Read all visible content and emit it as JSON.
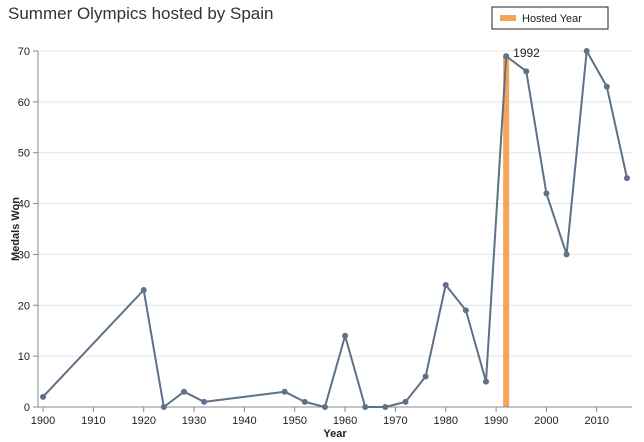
{
  "chart_data": {
    "type": "line",
    "title": "Summer Olympics hosted by Spain",
    "xlabel": "Year",
    "ylabel": "Medals Won",
    "xlim": [
      1899,
      2017
    ],
    "ylim": [
      0,
      70
    ],
    "xticks": [
      1900,
      1910,
      1920,
      1930,
      1940,
      1950,
      1960,
      1970,
      1980,
      1990,
      2000,
      2010
    ],
    "yticks": [
      0,
      10,
      20,
      30,
      40,
      50,
      60,
      70
    ],
    "grid": "horizontal",
    "series": [
      {
        "color": "#5f7186",
        "points": [
          {
            "x": 1900,
            "y": 2
          },
          {
            "x": 1920,
            "y": 23
          },
          {
            "x": 1924,
            "y": 0
          },
          {
            "x": 1928,
            "y": 3
          },
          {
            "x": 1932,
            "y": 1
          },
          {
            "x": 1948,
            "y": 3
          },
          {
            "x": 1952,
            "y": 1
          },
          {
            "x": 1956,
            "y": 0
          },
          {
            "x": 1960,
            "y": 14
          },
          {
            "x": 1964,
            "y": 0
          },
          {
            "x": 1968,
            "y": 0
          },
          {
            "x": 1972,
            "y": 1
          },
          {
            "x": 1976,
            "y": 6
          },
          {
            "x": 1980,
            "y": 24
          },
          {
            "x": 1984,
            "y": 19
          },
          {
            "x": 1988,
            "y": 5
          },
          {
            "x": 1992,
            "y": 69
          },
          {
            "x": 1996,
            "y": 66
          },
          {
            "x": 2000,
            "y": 42
          },
          {
            "x": 2004,
            "y": 30
          },
          {
            "x": 2008,
            "y": 70
          },
          {
            "x": 2012,
            "y": 63
          },
          {
            "x": 2016,
            "y": 45
          }
        ]
      }
    ],
    "hosted_year": {
      "x": 1992,
      "value": 69,
      "color": "#f5a55a"
    },
    "annotation": {
      "text": "1992",
      "x": 1992,
      "y": 69
    },
    "legend": {
      "label": "Hosted Year",
      "placement": "top-right"
    }
  }
}
